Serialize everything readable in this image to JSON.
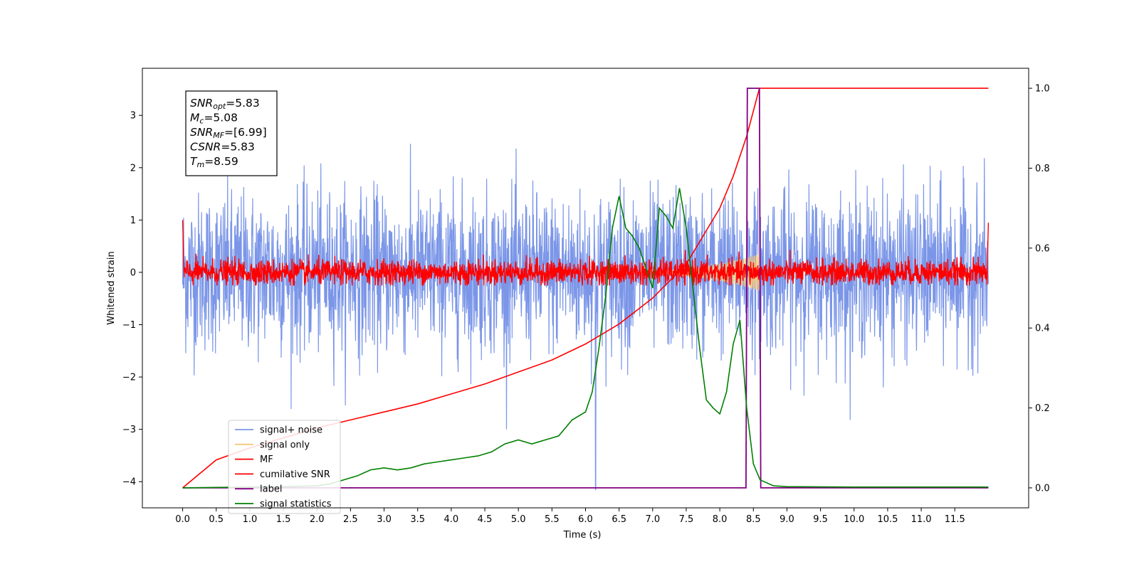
{
  "chart_data": {
    "type": "line",
    "xlabel": "Time (s)",
    "ylabel": "Whitened strain",
    "x_range": [
      -0.6,
      12.6
    ],
    "ylim_left": [
      -4.5,
      3.9
    ],
    "ylim_right": [
      -0.05,
      1.05
    ],
    "x_ticks": [
      0.0,
      0.5,
      1.0,
      1.5,
      2.0,
      2.5,
      3.0,
      3.5,
      4.0,
      4.5,
      5.0,
      5.5,
      6.0,
      6.5,
      7.0,
      7.5,
      8.0,
      8.5,
      9.0,
      9.5,
      10.0,
      10.5,
      11.0,
      11.5
    ],
    "x_tick_labels": [
      "0.0",
      "0.5",
      "1.0",
      "1.5",
      "2.0",
      "2.5",
      "3.0",
      "3.5",
      "4.0",
      "4.5",
      "5.0",
      "5.5",
      "6.0",
      "6.5",
      "7.0",
      "7.5",
      "8.0",
      "8.5",
      "9.0",
      "9.5",
      "10.0",
      "10.5",
      "11.0",
      "11.5"
    ],
    "y_left_ticks": [
      -4,
      -3,
      -2,
      -1,
      0,
      1,
      2,
      3
    ],
    "y_left_tick_labels": [
      "−4",
      "−3",
      "−2",
      "−1",
      "0",
      "1",
      "2",
      "3"
    ],
    "y_right_ticks": [
      0.0,
      0.2,
      0.4,
      0.6,
      0.8,
      1.0
    ],
    "y_right_tick_labels": [
      "0.0",
      "0.2",
      "0.4",
      "0.6",
      "0.8",
      "1.0"
    ],
    "grid": false,
    "legend_position": "lower-left",
    "annotation": {
      "lines": [
        {
          "base": "SNR",
          "sub": "opt",
          "value": "=5.83"
        },
        {
          "base": "M",
          "sub": "c",
          "value": "=5.08"
        },
        {
          "base": "SNR",
          "sub": "MF",
          "value": "=[6.99]"
        },
        {
          "base": "CSNR",
          "sub": "",
          "value": "=5.83"
        },
        {
          "base": "T",
          "sub": "m",
          "value": "=8.59"
        }
      ]
    },
    "series": [
      {
        "name": "signal+ noise",
        "color": "#7b96e8",
        "axis": "left",
        "kind": "noise",
        "std": 0.75,
        "x_start": 0.0,
        "x_end": 12.0,
        "min_dip": {
          "x": 6.15,
          "y": -4.15
        }
      },
      {
        "name": "signal only",
        "color": "#f5c87a",
        "axis": "left",
        "kind": "chirp",
        "x_start": 6.0,
        "x_end": 8.59,
        "max_amplitude": 0.35
      },
      {
        "name": "MF",
        "color": "#ff0000",
        "axis": "left",
        "kind": "noise",
        "std": 0.12,
        "x_start": 0.0,
        "x_end": 12.0,
        "edge_spikes": [
          {
            "x": 0.0,
            "y": 1.0
          },
          {
            "x": 12.0,
            "y": 0.95
          }
        ]
      },
      {
        "name": "cumilative SNR",
        "color": "#ff0000",
        "axis": "right",
        "x": [
          0.0,
          0.5,
          1.0,
          1.5,
          2.0,
          2.5,
          3.0,
          3.5,
          4.0,
          4.5,
          5.0,
          5.5,
          6.0,
          6.5,
          7.0,
          7.5,
          8.0,
          8.2,
          8.4,
          8.59,
          8.6,
          12.0
        ],
        "y": [
          0.0,
          0.07,
          0.1,
          0.125,
          0.15,
          0.17,
          0.19,
          0.21,
          0.235,
          0.26,
          0.29,
          0.32,
          0.36,
          0.41,
          0.475,
          0.56,
          0.7,
          0.78,
          0.88,
          1.0,
          1.0,
          1.0
        ]
      },
      {
        "name": "label",
        "color": "#800080",
        "axis": "right",
        "x": [
          0.0,
          8.39,
          8.41,
          8.59,
          8.61,
          12.0
        ],
        "y": [
          0.0,
          0.0,
          1.0,
          1.0,
          0.0,
          0.0
        ]
      },
      {
        "name": "signal statistics",
        "color": "#008000",
        "axis": "right",
        "x": [
          0.0,
          0.5,
          1.0,
          1.5,
          2.0,
          2.2,
          2.4,
          2.6,
          2.8,
          3.0,
          3.2,
          3.4,
          3.6,
          3.8,
          4.0,
          4.2,
          4.4,
          4.6,
          4.8,
          5.0,
          5.2,
          5.4,
          5.6,
          5.8,
          6.0,
          6.1,
          6.2,
          6.3,
          6.4,
          6.5,
          6.6,
          6.7,
          6.8,
          6.9,
          7.0,
          7.1,
          7.2,
          7.3,
          7.4,
          7.5,
          7.6,
          7.7,
          7.8,
          7.9,
          8.0,
          8.1,
          8.2,
          8.3,
          8.4,
          8.5,
          8.6,
          8.8,
          9.0,
          10.0,
          11.0,
          12.0
        ],
        "y": [
          0.0,
          0.001,
          0.002,
          0.003,
          0.005,
          0.01,
          0.02,
          0.03,
          0.045,
          0.05,
          0.045,
          0.05,
          0.06,
          0.065,
          0.07,
          0.075,
          0.08,
          0.09,
          0.11,
          0.12,
          0.11,
          0.12,
          0.13,
          0.17,
          0.19,
          0.24,
          0.35,
          0.48,
          0.65,
          0.73,
          0.65,
          0.63,
          0.6,
          0.55,
          0.5,
          0.7,
          0.68,
          0.65,
          0.75,
          0.65,
          0.5,
          0.35,
          0.22,
          0.2,
          0.185,
          0.24,
          0.36,
          0.42,
          0.2,
          0.06,
          0.02,
          0.005,
          0.003,
          0.002,
          0.002,
          0.002
        ]
      }
    ]
  }
}
